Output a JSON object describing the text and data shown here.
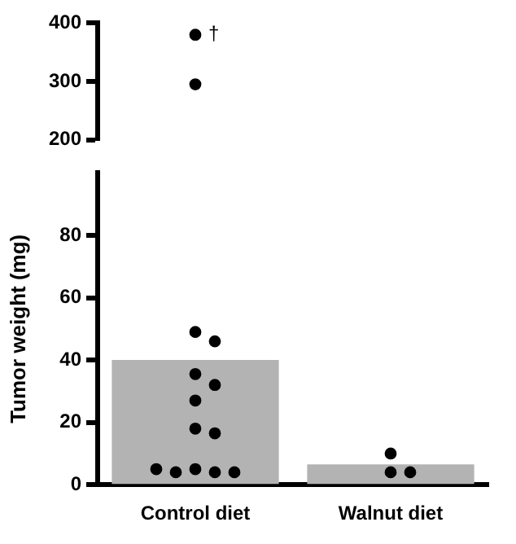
{
  "chart_data": [
    {
      "type": "scatter",
      "categories": [
        "Control diet",
        "Walnut diet"
      ],
      "tick_labels": "y",
      "ylim": [
        200,
        400
      ],
      "yticks": [
        200,
        300,
        400
      ],
      "annotations": [
        {
          "text": "†",
          "x": "Control diet",
          "y": 380
        }
      ],
      "series": [
        {
          "color": "#000000",
          "x": [
            "Control diet",
            "Control diet"
          ],
          "values": [
            380,
            295
          ]
        }
      ]
    },
    {
      "type": "bar",
      "categories": [
        "Control diet",
        "Walnut diet"
      ],
      "ylabel": "Tumor weight (mg)",
      "ylim": [
        0,
        100
      ],
      "yticks": [
        0,
        20,
        40,
        60,
        80
      ],
      "series": [
        {
          "color": "#b3b3b3",
          "values": [
            40,
            6.5
          ]
        },
        {
          "type": "scatter",
          "color": "#000000",
          "x": [
            "Control diet",
            "Control diet",
            "Control diet",
            "Control diet",
            "Control diet",
            "Control diet",
            "Control diet",
            "Control diet",
            "Control diet",
            "Control diet",
            "Control diet",
            "Control diet",
            "Walnut diet",
            "Walnut diet",
            "Walnut diet"
          ],
          "values": [
            49,
            46,
            35.5,
            32,
            27,
            18,
            16.5,
            5,
            4,
            4,
            4,
            5,
            10,
            4,
            4
          ]
        }
      ]
    }
  ]
}
